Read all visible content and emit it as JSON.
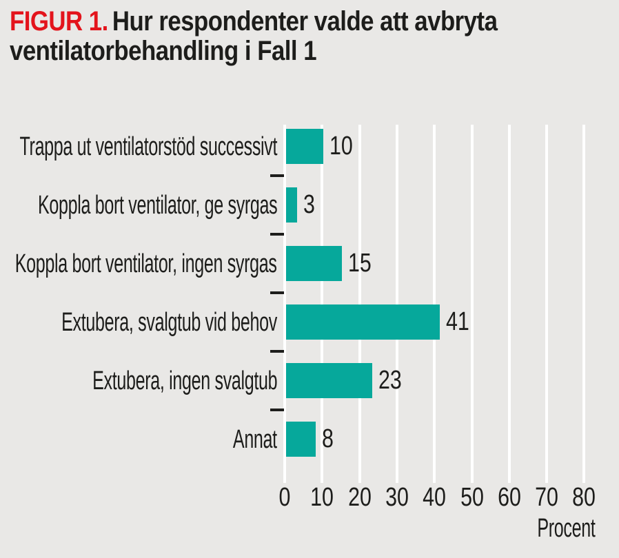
{
  "title": {
    "prefix": "FIGUR 1.",
    "line1": "Hur respondenter valde att avbryta",
    "line2": "ventilatorbehandling i Fall 1"
  },
  "colors": {
    "background": "#e9e8e6",
    "bar": "#06a89b",
    "accent_red": "#e3141c",
    "text": "#1d1d1b",
    "gridline": "#ffffff"
  },
  "chart_data": {
    "type": "bar",
    "orientation": "horizontal",
    "title": "FIGUR 1. Hur respondenter valde att avbryta ventilatorbehandling i Fall 1",
    "categories": [
      "Trappa ut ventilatorstöd successivt",
      "Koppla bort ventilator, ge syrgas",
      "Koppla bort ventilator, ingen syrgas",
      "Extubera, svalgtub vid behov",
      "Extubera, ingen svalgtub",
      "Annat"
    ],
    "values": [
      10,
      3,
      15,
      41,
      23,
      8
    ],
    "xlabel": "Procent",
    "xticks": [
      0,
      10,
      20,
      30,
      40,
      50,
      60,
      70,
      80
    ],
    "xlim": [
      0,
      80
    ],
    "grid": "vertical-white",
    "value_labels": "outside-end",
    "legend": "none"
  }
}
